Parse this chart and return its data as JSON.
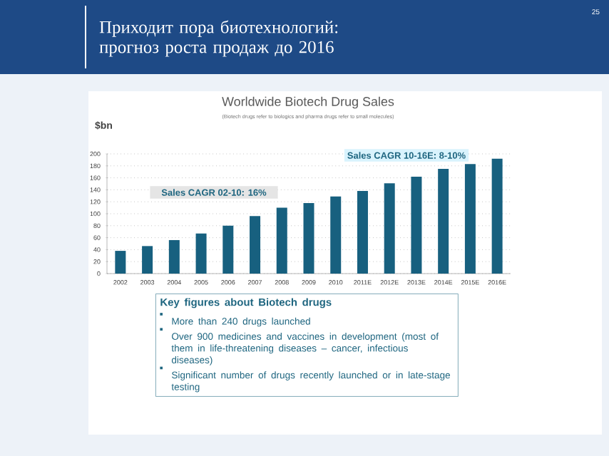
{
  "chart_data": {
    "type": "bar",
    "title": "Приходит пора биотехнологий: прогноз роста продаж до 2016",
    "subtitle": "Worldwide Biotech Drug Sales",
    "ylabel": "$bn",
    "categories": [
      "2002",
      "2003",
      "2004",
      "2005",
      "2006",
      "2007",
      "2008",
      "2009",
      "2010",
      "2011E",
      "2012E",
      "2013E",
      "2014E",
      "2015E",
      "2016E"
    ],
    "values": [
      38,
      46,
      56,
      67,
      80,
      96,
      110,
      118,
      129,
      138,
      151,
      162,
      175,
      183,
      192
    ],
    "color": "#17607f",
    "ylim": [
      0,
      200
    ],
    "yticks": [
      0,
      20,
      40,
      60,
      80,
      100,
      120,
      140,
      160,
      180,
      200
    ],
    "grid": "y",
    "annotations": [
      "Sales CAGR 02-10: 16%",
      "Sales CAGR 10-16E: 8-10%",
      "(Biotech drugs refer to biologics and pharma drugs refer to small molecules)",
      "Key figures about Biotech drugs",
      "More than 240 drugs launched",
      "Over 900 medicines and vaccines in development (most of them in life-threatening diseases – cancer, infectious diseases)",
      "Significant number of drugs recently launched or in late-stage testing",
      "25"
    ]
  }
}
